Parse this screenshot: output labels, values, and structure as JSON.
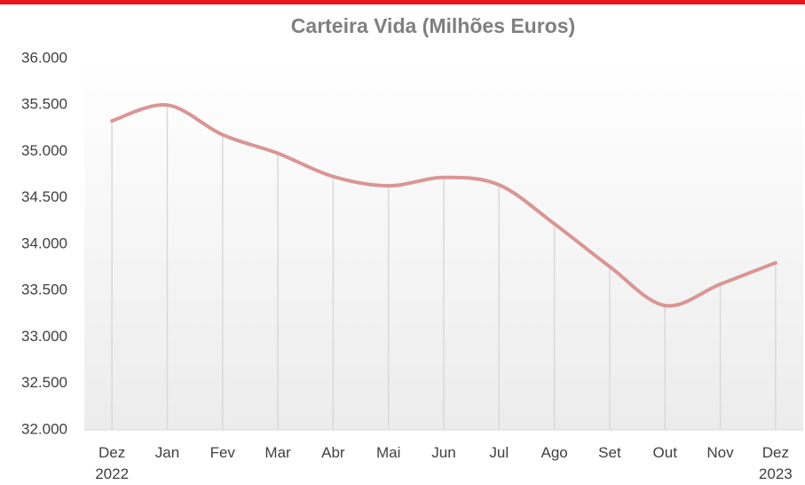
{
  "chart_data": {
    "type": "line",
    "title": "Carteira Vida (Milhões Euros)",
    "categories": [
      "Dez 2022",
      "Jan",
      "Fev",
      "Mar",
      "Abr",
      "Mai",
      "Jun",
      "Jul",
      "Ago",
      "Set",
      "Out",
      "Nov",
      "Dez 2023"
    ],
    "series": [
      {
        "name": "Carteira Vida",
        "color": "#d99694",
        "values": [
          35330,
          35500,
          35180,
          34980,
          34730,
          34630,
          34720,
          34640,
          34220,
          33760,
          33340,
          33570,
          33800
        ]
      }
    ],
    "ylim": [
      32000,
      36000
    ],
    "yticks": [
      {
        "value": 32000,
        "label": "32.000"
      },
      {
        "value": 32500,
        "label": "32.500"
      },
      {
        "value": 33000,
        "label": "33.000"
      },
      {
        "value": 33500,
        "label": "33.500"
      },
      {
        "value": 34000,
        "label": "34.000"
      },
      {
        "value": 34500,
        "label": "34.500"
      },
      {
        "value": 35000,
        "label": "35.000"
      },
      {
        "value": 35500,
        "label": "35.500"
      },
      {
        "value": 36000,
        "label": "36.000"
      }
    ],
    "smooth": true,
    "drop_lines": true
  }
}
